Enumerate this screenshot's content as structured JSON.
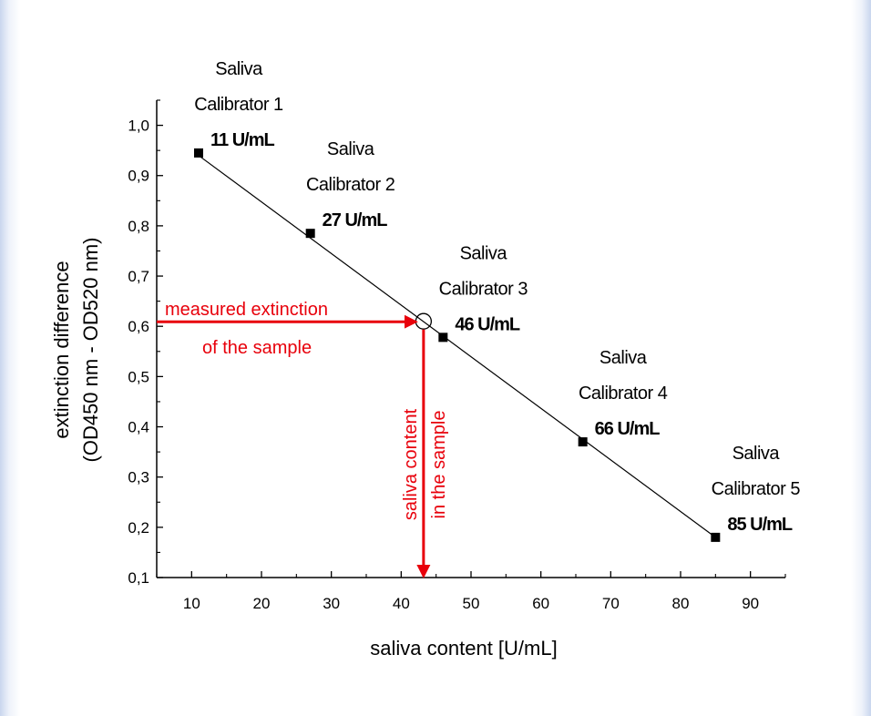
{
  "chart_data": {
    "type": "scatter",
    "xlabel": "saliva content [U/mL]",
    "ylabel_line1": "extinction difference",
    "ylabel_line2": "(OD450 nm - OD520 nm)",
    "xlim": [
      5,
      95
    ],
    "ylim": [
      0.1,
      1.05
    ],
    "x_ticks": [
      10,
      20,
      30,
      40,
      50,
      60,
      70,
      80,
      90
    ],
    "x_tick_labels": [
      "10",
      "20",
      "30",
      "40",
      "50",
      "60",
      "70",
      "80",
      "90"
    ],
    "y_ticks": [
      0.1,
      0.2,
      0.3,
      0.4,
      0.5,
      0.6,
      0.7,
      0.8,
      0.9,
      1.0
    ],
    "y_tick_labels": [
      "0,1",
      "0,2",
      "0,3",
      "0,4",
      "0,5",
      "0,6",
      "0,7",
      "0,8",
      "0,9",
      "1,0"
    ],
    "grid": false,
    "points": [
      {
        "x": 11,
        "y": 0.945,
        "name_line1": "Saliva",
        "name_line2": "Calibrator 1",
        "value_label": "11 U/mL"
      },
      {
        "x": 27,
        "y": 0.785,
        "name_line1": "Saliva",
        "name_line2": "Calibrator 2",
        "value_label": "27 U/mL"
      },
      {
        "x": 46,
        "y": 0.578,
        "name_line1": "Saliva",
        "name_line2": "Calibrator 3",
        "value_label": "46 U/mL"
      },
      {
        "x": 66,
        "y": 0.37,
        "name_line1": "Saliva",
        "name_line2": "Calibrator 4",
        "value_label": "66 U/mL"
      },
      {
        "x": 85,
        "y": 0.18,
        "name_line1": "Saliva",
        "name_line2": "Calibrator 5",
        "value_label": "85 U/mL"
      }
    ],
    "fit_line": {
      "x": [
        11,
        85
      ],
      "y": [
        0.94,
        0.18
      ]
    },
    "sample": {
      "x": 43.2,
      "y": 0.61
    },
    "annotations": {
      "extinction_line1": "measured extinction",
      "extinction_line2": "of the sample",
      "content_line1": "saliva content",
      "content_line2": "in the sample"
    },
    "colors": {
      "axes": "#000000",
      "points": "#000000",
      "annotation": "#e8000b"
    }
  }
}
